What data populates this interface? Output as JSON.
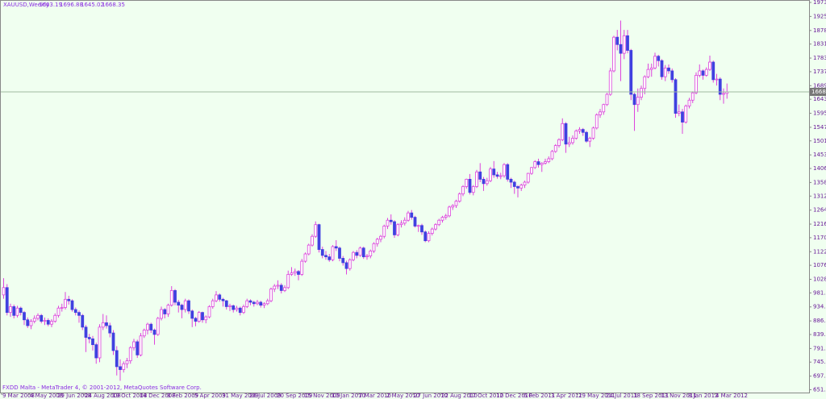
{
  "chart_data": {
    "type": "candlestick",
    "title": "XAUUSD,Weekly",
    "footer": "FXDD Malta - MetaTrader 4, © 2001-2012, MetaQuotes Software Corp.",
    "up_color": "#ffffff",
    "down_color": "#4040e0",
    "wick_color": "#dd44dd",
    "ylim": [
      641.6,
      1979.3
    ],
    "yticks": [
      1973.75,
      1925.95,
      {
        "value": 1878,
        "label": "1878.00"
      },
      {
        "value": 1831.6,
        "label": "1831.60"
      },
      1783.75,
      1737.25,
      {
        "value": 1689.5,
        "label": "1689.50"
      },
      {
        "value": 1643.1,
        "label": "1643.10"
      },
      1595.25,
      {
        "value": 1547.4,
        "label": "1547.40"
      },
      {
        "value": 1501,
        "label": "1501.00"
      },
      1453.15,
      1406.75,
      {
        "value": 1358.9,
        "label": "1358.90"
      },
      {
        "value": 1312.5,
        "label": "1312.50"
      },
      1264.65,
      {
        "value": 1216.8,
        "label": "1216.80"
      },
      {
        "value": 1170.4,
        "label": "1170.40"
      },
      1122.55,
      1076.15,
      {
        "value": 1028.3,
        "label": "1028.30"
      },
      {
        "value": 981.9,
        "label": "981.90"
      },
      934.05,
      {
        "value": 886.2,
        "label": "886.20"
      },
      {
        "value": 839.8,
        "label": "839.80"
      },
      791.95,
      745.55,
      {
        "value": 697.7,
        "label": "697.70"
      },
      {
        "value": 651.3,
        "label": "651.30"
      }
    ],
    "categories": [
      "9 Mar 2008",
      null,
      null,
      null,
      null,
      null,
      null,
      null,
      "4 May 2008",
      null,
      null,
      null,
      null,
      null,
      null,
      null,
      "29 Jun 2008",
      null,
      null,
      null,
      null,
      null,
      null,
      null,
      "24 Aug 2008",
      null,
      null,
      null,
      null,
      null,
      null,
      null,
      "19 Oct 2008",
      null,
      null,
      null,
      null,
      null,
      null,
      null,
      "14 Dec 2008",
      null,
      null,
      null,
      null,
      null,
      null,
      null,
      "8 Feb 2009",
      null,
      null,
      null,
      null,
      null,
      null,
      null,
      "5 Apr 2009",
      null,
      null,
      null,
      null,
      null,
      null,
      null,
      "31 May 2009",
      null,
      null,
      null,
      null,
      null,
      null,
      null,
      "26 Jul 2009",
      null,
      null,
      null,
      null,
      null,
      null,
      null,
      "20 Sep 2009",
      null,
      null,
      null,
      null,
      null,
      null,
      null,
      "15 Nov 2009",
      null,
      null,
      null,
      null,
      null,
      null,
      null,
      "10 Jan 2010",
      null,
      null,
      null,
      null,
      null,
      null,
      null,
      "7 Mar 2010",
      null,
      null,
      null,
      null,
      null,
      null,
      null,
      "2 May 2010",
      null,
      null,
      null,
      null,
      null,
      null,
      null,
      "27 Jun 2010",
      null,
      null,
      null,
      null,
      null,
      null,
      null,
      "22 Aug 2010",
      null,
      null,
      null,
      null,
      null,
      null,
      null,
      "17 Oct 2010",
      null,
      null,
      null,
      null,
      null,
      null,
      null,
      "12 Dec 2010",
      null,
      null,
      null,
      null,
      null,
      null,
      null,
      "6 Feb 2011",
      null,
      null,
      null,
      null,
      null,
      null,
      null,
      "3 Apr 2011",
      null,
      null,
      null,
      null,
      null,
      null,
      null,
      "29 May 2011",
      null,
      null,
      null,
      null,
      null,
      null,
      null,
      "24 Jul 2011",
      null,
      null,
      null,
      null,
      null,
      null,
      null,
      "18 Sep 2011",
      null,
      null,
      null,
      null,
      null,
      null,
      null,
      "13 Nov 2011",
      null,
      null,
      null,
      null,
      null,
      null,
      null,
      "8 Jan 2012",
      null,
      null,
      null,
      null,
      null,
      null,
      null,
      "4 Mar 2012",
      null,
      null,
      null
    ],
    "ohlc": [
      [
        975,
        1032,
        962,
        1000
      ],
      [
        1000,
        1012,
        905,
        915
      ],
      [
        915,
        945,
        900,
        935
      ],
      [
        935,
        942,
        895,
        905
      ],
      [
        905,
        938,
        898,
        930
      ],
      [
        930,
        935,
        905,
        915
      ],
      [
        915,
        920,
        872,
        890
      ],
      [
        890,
        898,
        862,
        870
      ],
      [
        870,
        892,
        858,
        885
      ],
      [
        885,
        905,
        878,
        895
      ],
      [
        895,
        912,
        888,
        905
      ],
      [
        905,
        910,
        878,
        885
      ],
      [
        885,
        898,
        872,
        888
      ],
      [
        888,
        895,
        868,
        875
      ],
      [
        875,
        892,
        865,
        885
      ],
      [
        885,
        912,
        880,
        905
      ],
      [
        905,
        938,
        898,
        930
      ],
      [
        930,
        945,
        918,
        932
      ],
      [
        932,
        985,
        925,
        960
      ],
      [
        960,
        972,
        942,
        955
      ],
      [
        955,
        960,
        918,
        925
      ],
      [
        925,
        932,
        905,
        915
      ],
      [
        915,
        922,
        880,
        905
      ],
      [
        905,
        910,
        855,
        865
      ],
      [
        865,
        872,
        780,
        830
      ],
      [
        830,
        842,
        810,
        825
      ],
      [
        825,
        835,
        785,
        805
      ],
      [
        805,
        812,
        740,
        760
      ],
      [
        760,
        875,
        745,
        865
      ],
      [
        865,
        910,
        855,
        880
      ],
      [
        880,
        905,
        860,
        870
      ],
      [
        870,
        880,
        830,
        845
      ],
      [
        845,
        855,
        770,
        785
      ],
      [
        785,
        800,
        700,
        730
      ],
      [
        730,
        755,
        682,
        720
      ],
      [
        720,
        748,
        710,
        740
      ],
      [
        740,
        760,
        725,
        750
      ],
      [
        750,
        800,
        740,
        795
      ],
      [
        795,
        825,
        785,
        815
      ],
      [
        815,
        822,
        760,
        770
      ],
      [
        770,
        845,
        765,
        835
      ],
      [
        835,
        860,
        828,
        855
      ],
      [
        855,
        880,
        840,
        875
      ],
      [
        875,
        880,
        845,
        855
      ],
      [
        855,
        860,
        805,
        840
      ],
      [
        840,
        900,
        835,
        895
      ],
      [
        895,
        935,
        888,
        925
      ],
      [
        925,
        930,
        895,
        910
      ],
      [
        910,
        945,
        900,
        940
      ],
      [
        940,
        1005,
        935,
        990
      ],
      [
        990,
        995,
        940,
        950
      ],
      [
        950,
        958,
        915,
        940
      ],
      [
        940,
        945,
        895,
        925
      ],
      [
        925,
        962,
        915,
        955
      ],
      [
        955,
        960,
        910,
        920
      ],
      [
        920,
        925,
        865,
        895
      ],
      [
        895,
        900,
        868,
        885
      ],
      [
        885,
        920,
        880,
        915
      ],
      [
        915,
        918,
        880,
        890
      ],
      [
        890,
        905,
        878,
        900
      ],
      [
        900,
        940,
        895,
        935
      ],
      [
        935,
        962,
        928,
        955
      ],
      [
        955,
        988,
        950,
        975
      ],
      [
        975,
        980,
        952,
        960
      ],
      [
        960,
        965,
        935,
        955
      ],
      [
        955,
        958,
        925,
        935
      ],
      [
        935,
        945,
        920,
        938
      ],
      [
        938,
        942,
        915,
        925
      ],
      [
        925,
        938,
        918,
        930
      ],
      [
        930,
        935,
        905,
        915
      ],
      [
        915,
        942,
        910,
        935
      ],
      [
        935,
        962,
        930,
        955
      ],
      [
        955,
        960,
        940,
        950
      ],
      [
        950,
        955,
        935,
        945
      ],
      [
        945,
        958,
        940,
        950
      ],
      [
        950,
        955,
        932,
        940
      ],
      [
        940,
        950,
        930,
        945
      ],
      [
        945,
        962,
        940,
        955
      ],
      [
        955,
        1000,
        950,
        995
      ],
      [
        995,
        1012,
        985,
        1005
      ],
      [
        1005,
        1025,
        995,
        1008
      ],
      [
        1008,
        1015,
        980,
        990
      ],
      [
        990,
        1008,
        985,
        1000
      ],
      [
        1000,
        1058,
        995,
        1045
      ],
      [
        1045,
        1070,
        1040,
        1050
      ],
      [
        1050,
        1065,
        1040,
        1055
      ],
      [
        1055,
        1060,
        1025,
        1045
      ],
      [
        1045,
        1098,
        1040,
        1090
      ],
      [
        1090,
        1120,
        1085,
        1115
      ],
      [
        1115,
        1150,
        1110,
        1145
      ],
      [
        1145,
        1182,
        1140,
        1175
      ],
      [
        1175,
        1226,
        1170,
        1215
      ],
      [
        1215,
        1218,
        1120,
        1130
      ],
      [
        1130,
        1140,
        1100,
        1110
      ],
      [
        1110,
        1125,
        1095,
        1105
      ],
      [
        1105,
        1115,
        1088,
        1095
      ],
      [
        1095,
        1145,
        1090,
        1140
      ],
      [
        1140,
        1162,
        1125,
        1135
      ],
      [
        1135,
        1140,
        1090,
        1100
      ],
      [
        1100,
        1108,
        1075,
        1085
      ],
      [
        1085,
        1092,
        1045,
        1065
      ],
      [
        1065,
        1100,
        1058,
        1095
      ],
      [
        1095,
        1125,
        1090,
        1120
      ],
      [
        1120,
        1128,
        1100,
        1110
      ],
      [
        1110,
        1140,
        1105,
        1135
      ],
      [
        1135,
        1140,
        1098,
        1105
      ],
      [
        1105,
        1115,
        1095,
        1108
      ],
      [
        1108,
        1130,
        1100,
        1125
      ],
      [
        1125,
        1155,
        1118,
        1150
      ],
      [
        1150,
        1170,
        1140,
        1165
      ],
      [
        1165,
        1180,
        1155,
        1175
      ],
      [
        1175,
        1215,
        1168,
        1210
      ],
      [
        1210,
        1238,
        1200,
        1230
      ],
      [
        1230,
        1250,
        1215,
        1225
      ],
      [
        1225,
        1230,
        1170,
        1180
      ],
      [
        1180,
        1220,
        1175,
        1215
      ],
      [
        1215,
        1230,
        1205,
        1220
      ],
      [
        1220,
        1240,
        1212,
        1230
      ],
      [
        1230,
        1262,
        1225,
        1255
      ],
      [
        1255,
        1265,
        1232,
        1240
      ],
      [
        1240,
        1245,
        1205,
        1210
      ],
      [
        1210,
        1215,
        1190,
        1212
      ],
      [
        1212,
        1218,
        1180,
        1190
      ],
      [
        1190,
        1195,
        1155,
        1160
      ],
      [
        1160,
        1192,
        1155,
        1185
      ],
      [
        1185,
        1205,
        1178,
        1200
      ],
      [
        1200,
        1220,
        1195,
        1215
      ],
      [
        1215,
        1235,
        1210,
        1230
      ],
      [
        1230,
        1245,
        1222,
        1240
      ],
      [
        1240,
        1252,
        1232,
        1245
      ],
      [
        1245,
        1280,
        1240,
        1275
      ],
      [
        1275,
        1285,
        1265,
        1280
      ],
      [
        1280,
        1300,
        1272,
        1295
      ],
      [
        1295,
        1325,
        1290,
        1320
      ],
      [
        1320,
        1350,
        1312,
        1345
      ],
      [
        1345,
        1372,
        1338,
        1370
      ],
      [
        1370,
        1388,
        1318,
        1325
      ],
      [
        1325,
        1350,
        1315,
        1345
      ],
      [
        1345,
        1402,
        1340,
        1395
      ],
      [
        1395,
        1425,
        1360,
        1370
      ],
      [
        1370,
        1378,
        1330,
        1355
      ],
      [
        1355,
        1375,
        1348,
        1365
      ],
      [
        1365,
        1412,
        1360,
        1405
      ],
      [
        1405,
        1432,
        1375,
        1385
      ],
      [
        1385,
        1395,
        1372,
        1380
      ],
      [
        1380,
        1392,
        1370,
        1382
      ],
      [
        1382,
        1425,
        1375,
        1420
      ],
      [
        1420,
        1425,
        1362,
        1370
      ],
      [
        1370,
        1375,
        1340,
        1360
      ],
      [
        1360,
        1365,
        1320,
        1345
      ],
      [
        1345,
        1350,
        1308,
        1340
      ],
      [
        1340,
        1355,
        1330,
        1350
      ],
      [
        1350,
        1365,
        1340,
        1360
      ],
      [
        1360,
        1392,
        1355,
        1390
      ],
      [
        1390,
        1412,
        1385,
        1410
      ],
      [
        1410,
        1435,
        1405,
        1430
      ],
      [
        1430,
        1440,
        1410,
        1420
      ],
      [
        1420,
        1428,
        1395,
        1425
      ],
      [
        1425,
        1440,
        1420,
        1430
      ],
      [
        1430,
        1448,
        1425,
        1440
      ],
      [
        1440,
        1470,
        1435,
        1465
      ],
      [
        1465,
        1490,
        1460,
        1485
      ],
      [
        1485,
        1510,
        1478,
        1505
      ],
      [
        1505,
        1578,
        1500,
        1560
      ],
      [
        1560,
        1565,
        1460,
        1490
      ],
      [
        1490,
        1515,
        1480,
        1495
      ],
      [
        1495,
        1520,
        1488,
        1510
      ],
      [
        1510,
        1540,
        1505,
        1535
      ],
      [
        1535,
        1548,
        1525,
        1540
      ],
      [
        1540,
        1545,
        1518,
        1530
      ],
      [
        1530,
        1535,
        1495,
        1500
      ],
      [
        1500,
        1515,
        1480,
        1510
      ],
      [
        1510,
        1550,
        1505,
        1545
      ],
      [
        1545,
        1595,
        1540,
        1590
      ],
      [
        1590,
        1610,
        1580,
        1600
      ],
      [
        1600,
        1628,
        1590,
        1625
      ],
      [
        1625,
        1665,
        1620,
        1660
      ],
      [
        1660,
        1750,
        1655,
        1740
      ],
      [
        1740,
        1860,
        1735,
        1855
      ],
      [
        1855,
        1880,
        1810,
        1830
      ],
      [
        1830,
        1912,
        1705,
        1800
      ],
      [
        1800,
        1880,
        1780,
        1860
      ],
      [
        1860,
        1880,
        1800,
        1810
      ],
      [
        1810,
        1815,
        1640,
        1660
      ],
      [
        1660,
        1665,
        1535,
        1625
      ],
      [
        1625,
        1680,
        1600,
        1650
      ],
      [
        1650,
        1690,
        1640,
        1680
      ],
      [
        1680,
        1725,
        1660,
        1720
      ],
      [
        1720,
        1765,
        1715,
        1745
      ],
      [
        1745,
        1765,
        1720,
        1750
      ],
      [
        1750,
        1802,
        1745,
        1790
      ],
      [
        1790,
        1795,
        1755,
        1775
      ],
      [
        1775,
        1780,
        1710,
        1720
      ],
      [
        1720,
        1760,
        1705,
        1750
      ],
      [
        1750,
        1762,
        1730,
        1740
      ],
      [
        1740,
        1748,
        1700,
        1710
      ],
      [
        1710,
        1715,
        1580,
        1595
      ],
      [
        1595,
        1625,
        1585,
        1600
      ],
      [
        1600,
        1610,
        1525,
        1565
      ],
      [
        1565,
        1625,
        1560,
        1620
      ],
      [
        1620,
        1648,
        1612,
        1640
      ],
      [
        1640,
        1670,
        1630,
        1665
      ],
      [
        1665,
        1735,
        1660,
        1725
      ],
      [
        1725,
        1762,
        1718,
        1740
      ],
      [
        1740,
        1745,
        1710,
        1725
      ],
      [
        1725,
        1752,
        1720,
        1745
      ],
      [
        1745,
        1792,
        1740,
        1770
      ],
      [
        1770,
        1775,
        1700,
        1710
      ],
      [
        1710,
        1730,
        1690,
        1712
      ],
      [
        1712,
        1718,
        1640,
        1660
      ],
      [
        1660,
        1680,
        1628,
        1663.19
      ],
      [
        1663.19,
        1696.88,
        1645.02,
        1668.35
      ]
    ]
  }
}
